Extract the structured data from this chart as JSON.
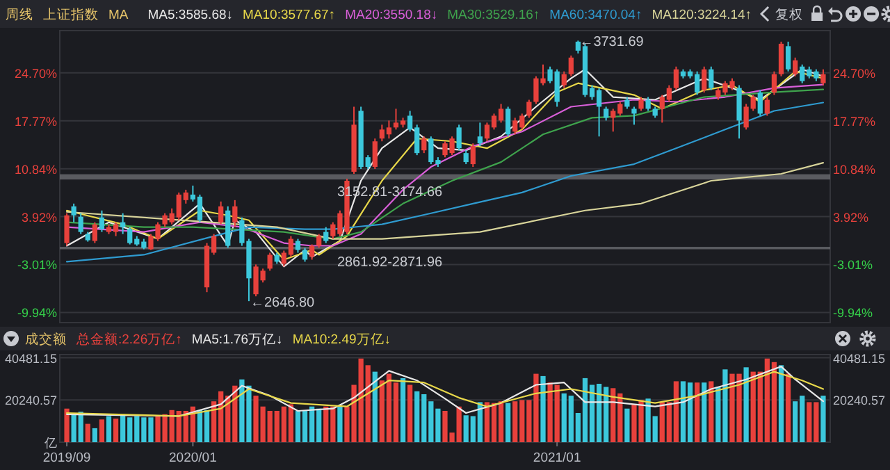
{
  "chart_data": [
    {
      "type": "candlestick",
      "subtitle": "周线",
      "title": "上证指数",
      "legend_title": "MA",
      "legend": "top left",
      "grid": "y",
      "tick_labels": "y",
      "x": [
        "2019-09-02",
        "2019-09-09",
        "2019-09-16",
        "2019-09-23",
        "2019-09-30",
        "2019-10-07",
        "2019-10-14",
        "2019-10-21",
        "2019-10-28",
        "2019-11-04",
        "2019-11-11",
        "2019-11-18",
        "2019-11-25",
        "2019-12-02",
        "2019-12-09",
        "2019-12-16",
        "2019-12-23",
        "2019-12-30",
        "2020-01-06",
        "2020-01-13",
        "2020-01-20",
        "2020-01-27",
        "2020-02-03",
        "2020-02-10",
        "2020-02-17",
        "2020-02-24",
        "2020-03-02",
        "2020-03-09",
        "2020-03-16",
        "2020-03-23",
        "2020-03-30",
        "2020-04-06",
        "2020-04-13",
        "2020-04-20",
        "2020-04-27",
        "2020-05-04",
        "2020-05-11",
        "2020-05-18",
        "2020-05-25",
        "2020-06-01",
        "2020-06-08",
        "2020-06-15",
        "2020-06-22",
        "2020-06-29",
        "2020-07-06",
        "2020-07-13",
        "2020-07-20",
        "2020-07-27",
        "2020-08-03",
        "2020-08-10",
        "2020-08-17",
        "2020-08-24",
        "2020-08-31",
        "2020-09-07",
        "2020-09-14",
        "2020-09-21",
        "2020-09-28",
        "2020-10-05",
        "2020-10-12",
        "2020-10-19",
        "2020-10-26",
        "2020-11-02",
        "2020-11-09",
        "2020-11-16",
        "2020-11-23",
        "2020-11-30",
        "2020-12-07",
        "2020-12-14",
        "2020-12-21",
        "2020-12-28",
        "2021-01-04",
        "2021-01-11",
        "2021-01-18",
        "2021-01-25",
        "2021-02-01",
        "2021-02-08",
        "2021-02-15",
        "2021-02-22",
        "2021-03-01",
        "2021-03-08",
        "2021-03-15",
        "2021-03-22",
        "2021-03-29",
        "2021-04-05",
        "2021-04-12",
        "2021-04-19",
        "2021-04-26",
        "2021-05-03",
        "2021-05-10",
        "2021-05-17",
        "2021-05-24",
        "2021-05-31",
        "2021-06-07",
        "2021-06-14",
        "2021-06-21",
        "2021-06-28",
        "2021-07-05",
        "2021-07-12",
        "2021-07-19",
        "2021-07-26",
        "2021-08-02",
        "2021-08-09",
        "2021-08-16",
        "2021-08-23",
        "2021-08-30",
        "2021-09-06",
        "2021-09-13",
        "2021-09-20",
        "2021-09-27"
      ],
      "ohlc": [
        [
          0.1,
          4.4,
          -0.3,
          4.1
        ],
        [
          5.4,
          5.8,
          3.1,
          4.1
        ],
        [
          3.9,
          4.4,
          1.4,
          1.7
        ],
        [
          1.4,
          1.7,
          0.3,
          0.5
        ],
        [
          0.4,
          3.1,
          0.1,
          2.8
        ],
        [
          3.8,
          4.8,
          1.7,
          2.1
        ],
        [
          1.7,
          2.8,
          1.4,
          2.4
        ],
        [
          1.7,
          3.1,
          1.1,
          2.8
        ],
        [
          3.1,
          4.4,
          1.4,
          2.4
        ],
        [
          2.1,
          2.4,
          -0.1,
          0.1
        ],
        [
          0.7,
          1.1,
          -0.3,
          -0.1
        ],
        [
          0.3,
          0.7,
          -0.8,
          -0.6
        ],
        [
          -0.8,
          1.4,
          -0.9,
          1.1
        ],
        [
          0.7,
          3.1,
          0.4,
          2.8
        ],
        [
          2.8,
          4.4,
          2.4,
          4.1
        ],
        [
          3.1,
          5.1,
          2.8,
          4.4
        ],
        [
          3.8,
          7.4,
          3.4,
          7.1
        ],
        [
          6.3,
          7.8,
          5.8,
          7.4
        ],
        [
          7.1,
          8.4,
          6.1,
          6.4
        ],
        [
          6.8,
          7.1,
          3.1,
          3.4
        ],
        [
          -6.3,
          0.1,
          -7.0,
          -0.3
        ],
        [
          -1.3,
          1.4,
          -1.6,
          1.1
        ],
        [
          3.1,
          6.1,
          2.8,
          5.4
        ],
        [
          4.8,
          5.4,
          -0.6,
          -0.3
        ],
        [
          3.1,
          6.3,
          2.4,
          5.4
        ],
        [
          3.4,
          3.8,
          -0.3,
          0.1
        ],
        [
          0.4,
          0.7,
          -8.3,
          -5.0
        ],
        [
          -7.3,
          -3.0,
          -7.6,
          -3.3
        ],
        [
          -5.3,
          -3.6,
          -5.6,
          -3.9
        ],
        [
          -3.6,
          -1.3,
          -3.9,
          -1.6
        ],
        [
          -1.6,
          -1.3,
          -2.9,
          -2.6
        ],
        [
          -2.9,
          -1.0,
          -3.3,
          -1.3
        ],
        [
          -1.6,
          1.1,
          -1.9,
          0.7
        ],
        [
          0.4,
          0.7,
          -1.3,
          -0.9
        ],
        [
          -0.9,
          -0.6,
          -2.6,
          -2.3
        ],
        [
          -1.9,
          -0.1,
          -2.3,
          -0.3
        ],
        [
          -0.3,
          1.4,
          -0.6,
          1.1
        ],
        [
          1.7,
          2.4,
          0.1,
          0.4
        ],
        [
          1.1,
          3.1,
          0.7,
          2.8
        ],
        [
          1.4,
          4.8,
          1.1,
          4.4
        ],
        [
          1.7,
          9.4,
          1.4,
          9.1
        ],
        [
          10.4,
          19.8,
          10.1,
          17.2
        ],
        [
          19.2,
          19.8,
          10.8,
          11.1
        ],
        [
          12.5,
          12.8,
          10.8,
          11.1
        ],
        [
          11.1,
          15.2,
          10.8,
          14.8
        ],
        [
          15.2,
          17.2,
          14.8,
          16.5
        ],
        [
          15.8,
          17.8,
          15.2,
          16.8
        ],
        [
          16.8,
          19.5,
          16.5,
          17.5
        ],
        [
          17.2,
          18.2,
          16.8,
          17.8
        ],
        [
          18.5,
          19.2,
          16.2,
          16.5
        ],
        [
          16.8,
          17.2,
          12.8,
          13.1
        ],
        [
          13.5,
          15.5,
          13.1,
          15.2
        ],
        [
          15.2,
          15.5,
          11.5,
          11.8
        ],
        [
          12.1,
          12.5,
          11.1,
          11.5
        ],
        [
          12.8,
          14.8,
          12.5,
          14.5
        ],
        [
          13.1,
          15.5,
          12.8,
          15.2
        ],
        [
          16.8,
          17.2,
          13.5,
          13.8
        ],
        [
          13.1,
          13.5,
          11.5,
          11.8
        ],
        [
          11.5,
          14.5,
          11.1,
          14.1
        ],
        [
          15.5,
          17.5,
          14.1,
          14.5
        ],
        [
          15.2,
          17.5,
          14.8,
          17.2
        ],
        [
          16.8,
          18.8,
          16.5,
          18.5
        ],
        [
          17.8,
          20.2,
          17.5,
          19.5
        ],
        [
          19.5,
          19.8,
          15.5,
          15.8
        ],
        [
          16.2,
          18.2,
          15.8,
          17.8
        ],
        [
          16.8,
          18.8,
          16.5,
          18.5
        ],
        [
          18.5,
          20.8,
          18.2,
          20.5
        ],
        [
          20.5,
          24.2,
          20.2,
          23.9
        ],
        [
          23.2,
          25.9,
          22.9,
          23.9
        ],
        [
          25.2,
          25.6,
          23.2,
          23.5
        ],
        [
          24.9,
          25.2,
          19.8,
          20.5
        ],
        [
          22.9,
          24.9,
          22.5,
          24.5
        ],
        [
          24.5,
          27.2,
          24.2,
          26.9
        ],
        [
          29.2,
          29.35,
          27.5,
          27.9
        ],
        [
          28.55,
          28.9,
          21.2,
          21.5
        ],
        [
          22.5,
          22.9,
          20.8,
          21.2
        ],
        [
          22.2,
          22.5,
          15.5,
          19.8
        ],
        [
          19.5,
          19.8,
          17.8,
          18.2
        ],
        [
          18.2,
          19.5,
          16.2,
          19.2
        ],
        [
          18.8,
          20.5,
          18.5,
          20.2
        ],
        [
          20.8,
          21.2,
          19.5,
          19.8
        ],
        [
          19.5,
          19.8,
          17.2,
          18.8
        ],
        [
          19.5,
          21.2,
          19.2,
          20.8
        ],
        [
          20.8,
          21.2,
          19.2,
          19.5
        ],
        [
          19.5,
          19.8,
          18.2,
          18.5
        ],
        [
          19.5,
          21.5,
          17.5,
          21.2
        ],
        [
          20.8,
          22.9,
          20.5,
          22.5
        ],
        [
          22.5,
          25.6,
          22.2,
          25.2
        ],
        [
          24.9,
          25.2,
          23.9,
          24.2
        ],
        [
          24.9,
          25.2,
          23.9,
          24.2
        ],
        [
          24.5,
          24.9,
          21.5,
          21.85
        ],
        [
          22.2,
          25.6,
          21.85,
          25.2
        ],
        [
          25.2,
          25.6,
          22.2,
          22.5
        ],
        [
          21.2,
          22.5,
          20.8,
          22.2
        ],
        [
          21.85,
          23.5,
          21.5,
          23.2
        ],
        [
          22.5,
          23.9,
          22.2,
          23.5
        ],
        [
          22.5,
          22.9,
          15.2,
          17.8
        ],
        [
          16.8,
          20.2,
          16.5,
          19.8
        ],
        [
          19.5,
          21.5,
          19.2,
          21.2
        ],
        [
          21.85,
          22.2,
          18.5,
          18.8
        ],
        [
          18.8,
          21.2,
          18.5,
          20.8
        ],
        [
          21.85,
          24.9,
          21.5,
          24.5
        ],
        [
          24.5,
          29.2,
          24.2,
          28.9
        ],
        [
          28.55,
          29.2,
          24.9,
          25.2
        ],
        [
          24.5,
          26.9,
          24.2,
          26.5
        ],
        [
          25.6,
          25.9,
          23.2,
          23.5
        ],
        [
          25.2,
          25.6,
          23.9,
          24.2
        ],
        [
          24.9,
          25.2,
          23.5,
          23.9
        ],
        [
          23.2,
          25.2,
          22.9,
          24.5
        ]
      ],
      "colors": [
        "#e8413c",
        "#3cc8dc",
        "#3cc8dc",
        "#3cc8dc",
        "#e8413c",
        "#3cc8dc",
        "#e8413c",
        "#e8413c",
        "#3cc8dc",
        "#3cc8dc",
        "#3cc8dc",
        "#3cc8dc",
        "#e8413c",
        "#e8413c",
        "#e8413c",
        "#e8413c",
        "#e8413c",
        "#e8413c",
        "#3cc8dc",
        "#3cc8dc",
        "#e8413c",
        "#e8413c",
        "#e8413c",
        "#3cc8dc",
        "#e8413c",
        "#3cc8dc",
        "#3cc8dc",
        "#e8413c",
        "#e8413c",
        "#e8413c",
        "#3cc8dc",
        "#e8413c",
        "#e8413c",
        "#3cc8dc",
        "#3cc8dc",
        "#e8413c",
        "#e8413c",
        "#3cc8dc",
        "#e8413c",
        "#e8413c",
        "#e8413c",
        "#e8413c",
        "#3cc8dc",
        "#3cc8dc",
        "#e8413c",
        "#e8413c",
        "#e8413c",
        "#e8413c",
        "#e8413c",
        "#3cc8dc",
        "#3cc8dc",
        "#e8413c",
        "#3cc8dc",
        "#3cc8dc",
        "#e8413c",
        "#e8413c",
        "#3cc8dc",
        "#3cc8dc",
        "#e8413c",
        "#3cc8dc",
        "#e8413c",
        "#e8413c",
        "#e8413c",
        "#3cc8dc",
        "#e8413c",
        "#e8413c",
        "#e8413c",
        "#e8413c",
        "#e8413c",
        "#3cc8dc",
        "#3cc8dc",
        "#e8413c",
        "#e8413c",
        "#3cc8dc",
        "#3cc8dc",
        "#3cc8dc",
        "#3cc8dc",
        "#3cc8dc",
        "#e8413c",
        "#e8413c",
        "#3cc8dc",
        "#3cc8dc",
        "#e8413c",
        "#3cc8dc",
        "#3cc8dc",
        "#e8413c",
        "#e8413c",
        "#e8413c",
        "#3cc8dc",
        "#3cc8dc",
        "#3cc8dc",
        "#e8413c",
        "#3cc8dc",
        "#e8413c",
        "#e8413c",
        "#e8413c",
        "#3cc8dc",
        "#e8413c",
        "#e8413c",
        "#3cc8dc",
        "#e8413c",
        "#e8413c",
        "#e8413c",
        "#3cc8dc",
        "#e8413c",
        "#3cc8dc",
        "#3cc8dc",
        "#3cc8dc",
        "#e8413c"
      ],
      "series": [
        {
          "type": "line",
          "name": "MA5:3585.68↓",
          "color": "#e8e8e8",
          "x": [
            "2019-09-02",
            "2019-10-14",
            "2019-12-02",
            "2020-01-13",
            "2020-02-10",
            "2020-02-17",
            "2020-03-09",
            "2020-04-06",
            "2020-04-27",
            "2020-05-04",
            "2020-06-01",
            "2020-06-22",
            "2020-07-13",
            "2020-08-10",
            "2020-09-07",
            "2020-10-05",
            "2020-11-09",
            "2020-12-14",
            "2021-01-18",
            "2021-02-01",
            "2021-03-01",
            "2021-04-12",
            "2021-05-31",
            "2021-06-28",
            "2021-07-26",
            "2021-09-06",
            "2021-09-27"
          ],
          "values": [
            -0.3,
            3.1,
            0.7,
            5.8,
            -0.3,
            3.4,
            1.7,
            -3.3,
            -0.9,
            -1.9,
            0.4,
            9.1,
            13.8,
            16.8,
            13.8,
            13.5,
            15.5,
            19.8,
            23.9,
            25.2,
            21.2,
            20.8,
            23.9,
            22.5,
            20.8,
            25.2,
            24.2
          ]
        },
        {
          "type": "line",
          "name": "MA10:3577.67↑",
          "color": "#e8d84a",
          "x": [
            "2019-09-02",
            "2019-10-28",
            "2019-12-02",
            "2020-01-13",
            "2020-02-10",
            "2020-03-02",
            "2020-04-06",
            "2020-05-04",
            "2020-05-11",
            "2020-06-08",
            "2020-07-13",
            "2020-08-17",
            "2020-09-21",
            "2020-10-26",
            "2020-11-30",
            "2021-01-04",
            "2021-01-25",
            "2021-03-22",
            "2021-04-19",
            "2021-05-31",
            "2021-06-28",
            "2021-07-26",
            "2021-08-30",
            "2021-09-27"
          ],
          "values": [
            4.8,
            2.8,
            0.7,
            4.8,
            4.1,
            3.4,
            -2.3,
            -0.9,
            -1.6,
            1.1,
            9.1,
            15.2,
            14.8,
            13.8,
            16.5,
            21.9,
            23.2,
            21.5,
            19.5,
            22.2,
            22.9,
            20.5,
            24.9,
            23.9
          ]
        },
        {
          "type": "line",
          "name": "MA20:3550.18↓",
          "color": "#d95fd9",
          "x": [
            "2019-09-02",
            "2019-11-18",
            "2020-01-13",
            "2020-02-24",
            "2020-04-06",
            "2020-05-04",
            "2020-05-25",
            "2020-06-22",
            "2020-08-03",
            "2020-08-31",
            "2020-10-12",
            "2020-11-30",
            "2021-01-18",
            "2021-03-22",
            "2021-05-03",
            "2021-06-21",
            "2021-08-09",
            "2021-09-27"
          ],
          "values": [
            2.4,
            1.7,
            3.1,
            2.4,
            0.1,
            -0.3,
            -0.3,
            1.4,
            7.8,
            11.1,
            14.1,
            16.2,
            19.8,
            20.8,
            20.5,
            21.2,
            22.5,
            23.0
          ]
        },
        {
          "type": "line",
          "name": "MA30:3529.16↑",
          "color": "#3fa34d",
          "x": [
            "2019-09-02",
            "2019-11-18",
            "2020-01-06",
            "2020-04-06",
            "2020-05-04",
            "2020-05-25",
            "2020-06-22",
            "2020-08-03",
            "2020-09-21",
            "2020-11-09",
            "2020-12-21",
            "2021-02-08",
            "2021-03-22",
            "2021-05-31",
            "2021-08-09",
            "2021-09-27"
          ],
          "values": [
            3.1,
            2.4,
            2.4,
            1.7,
            1.1,
            0.7,
            1.7,
            5.8,
            9.1,
            11.8,
            15.8,
            18.2,
            18.5,
            21.2,
            21.9,
            22.3
          ]
        },
        {
          "type": "line",
          "name": "MA60:3470.04↑",
          "color": "#2f9bd0",
          "x": [
            "2019-09-02",
            "2019-11-18",
            "2020-01-27",
            "2020-03-02",
            "2020-04-27",
            "2020-05-25",
            "2020-07-13",
            "2020-08-31",
            "2020-10-12",
            "2020-11-30",
            "2021-01-18",
            "2021-03-22",
            "2021-05-03",
            "2021-06-21",
            "2021-08-09",
            "2021-09-27"
          ],
          "values": [
            -2.6,
            -1.6,
            1.1,
            2.4,
            2.1,
            2.1,
            2.8,
            4.4,
            5.8,
            7.4,
            9.8,
            11.5,
            13.8,
            16.5,
            19.2,
            20.4
          ]
        },
        {
          "type": "line",
          "name": "MA120:3224.14↑",
          "color": "#d8d49a",
          "x": [
            "2019-09-02",
            "2020-03-30",
            "2020-05-25",
            "2020-07-13",
            "2020-10-19",
            "2021-02-01",
            "2021-03-29",
            "2021-06-07",
            "2021-08-16",
            "2021-09-27"
          ],
          "values": [
            4.6,
            2.4,
            0.7,
            0.7,
            1.7,
            4.8,
            5.8,
            9.1,
            10.1,
            11.7
          ]
        }
      ],
      "xlim": [
        "2019-08-26",
        "2021-10-04"
      ],
      "ylim": [
        -11.4,
        30.8
      ],
      "yticks": [
        {
          "value": -9.94,
          "label": "-9.94%"
        },
        {
          "value": -3.01,
          "label": "-3.01%"
        },
        {
          "value": 3.92,
          "label": "3.92%"
        },
        {
          "value": 10.84,
          "label": "10.84%"
        },
        {
          "value": 17.77,
          "label": "17.77%"
        },
        {
          "value": 24.7,
          "label": "24.70%"
        }
      ],
      "y2lim": [
        -11.4,
        30.8
      ],
      "y2ticks": [
        {
          "value": -9.94,
          "label": "-9.94%"
        },
        {
          "value": -3.01,
          "label": "-3.01%"
        },
        {
          "value": 3.92,
          "label": "3.92%"
        },
        {
          "value": 10.84,
          "label": "10.84%"
        },
        {
          "value": 17.77,
          "label": "17.77%"
        },
        {
          "value": 24.7,
          "label": "24.70%"
        }
      ],
      "bands": [
        {
          "axis": "y",
          "from": 9.28,
          "to": 10.04,
          "label": "3152.81-3174.66",
          "color": "#6a6b70"
        },
        {
          "axis": "y",
          "from": -0.8,
          "to": -0.45,
          "label": "2861.92-2871.96",
          "color": "#6a6b70"
        }
      ],
      "annotations": [
        {
          "text": "←3731.69",
          "x": "2021-01-25",
          "y": 29.35
        },
        {
          "text": "←2646.80",
          "x": "2020-03-02",
          "y": -8.3
        },
        "复权"
      ]
    },
    {
      "type": "bar",
      "title": "成交额",
      "legend": "top left",
      "grid": "y",
      "x": [
        "2019-09-02",
        "2019-09-09",
        "2019-09-16",
        "2019-09-23",
        "2019-09-30",
        "2019-10-07",
        "2019-10-14",
        "2019-10-21",
        "2019-10-28",
        "2019-11-04",
        "2019-11-11",
        "2019-11-18",
        "2019-11-25",
        "2019-12-02",
        "2019-12-09",
        "2019-12-16",
        "2019-12-23",
        "2019-12-30",
        "2020-01-06",
        "2020-01-13",
        "2020-01-20",
        "2020-01-27",
        "2020-02-03",
        "2020-02-10",
        "2020-02-17",
        "2020-02-24",
        "2020-03-02",
        "2020-03-09",
        "2020-03-16",
        "2020-03-23",
        "2020-03-30",
        "2020-04-06",
        "2020-04-13",
        "2020-04-20",
        "2020-04-27",
        "2020-05-04",
        "2020-05-11",
        "2020-05-18",
        "2020-05-25",
        "2020-06-01",
        "2020-06-08",
        "2020-06-15",
        "2020-06-22",
        "2020-06-29",
        "2020-07-06",
        "2020-07-13",
        "2020-07-20",
        "2020-07-27",
        "2020-08-03",
        "2020-08-10",
        "2020-08-17",
        "2020-08-24",
        "2020-08-31",
        "2020-09-07",
        "2020-09-14",
        "2020-09-21",
        "2020-09-28",
        "2020-10-05",
        "2020-10-12",
        "2020-10-19",
        "2020-10-26",
        "2020-11-02",
        "2020-11-09",
        "2020-11-16",
        "2020-11-23",
        "2020-11-30",
        "2020-12-07",
        "2020-12-14",
        "2020-12-21",
        "2020-12-28",
        "2021-01-04",
        "2021-01-11",
        "2021-01-18",
        "2021-01-25",
        "2021-02-01",
        "2021-02-08",
        "2021-02-15",
        "2021-02-22",
        "2021-03-01",
        "2021-03-08",
        "2021-03-15",
        "2021-03-22",
        "2021-03-29",
        "2021-04-05",
        "2021-04-12",
        "2021-04-19",
        "2021-04-26",
        "2021-05-03",
        "2021-05-10",
        "2021-05-17",
        "2021-05-24",
        "2021-05-31",
        "2021-06-07",
        "2021-06-14",
        "2021-06-21",
        "2021-06-28",
        "2021-07-05",
        "2021-07-12",
        "2021-07-19",
        "2021-07-26",
        "2021-08-02",
        "2021-08-09",
        "2021-08-16",
        "2021-08-23",
        "2021-08-30",
        "2021-09-06",
        "2021-09-13",
        "2021-09-20",
        "2021-09-27"
      ],
      "series": [
        {
          "name": "总金额:2.26万亿↑",
          "color": "#e8413c",
          "colors": [
            "#e8413c",
            "#3cc8dc",
            "#3cc8dc",
            "#e8413c",
            "#3cc8dc",
            "#e8413c",
            "#3cc8dc",
            "#e8413c",
            "#3cc8dc",
            "#3cc8dc",
            "#3cc8dc",
            "#3cc8dc",
            "#3cc8dc",
            "#e8413c",
            "#e8413c",
            "#e8413c",
            "#e8413c",
            "#e8413c",
            "#e8413c",
            "#3cc8dc",
            "#3cc8dc",
            "#e8413c",
            "#e8413c",
            "#e8413c",
            "#e8413c",
            "#3cc8dc",
            "#3cc8dc",
            "#e8413c",
            "#e8413c",
            "#e8413c",
            "#e8413c",
            "#e8413c",
            "#e8413c",
            "#3cc8dc",
            "#3cc8dc",
            "#3cc8dc",
            "#3cc8dc",
            "#e8413c",
            "#e8413c",
            "#3cc8dc",
            "#e8413c",
            "#e8413c",
            "#e8413c",
            "#e8413c",
            "#3cc8dc",
            "#e8413c",
            "#e8413c",
            "#e8413c",
            "#3cc8dc",
            "#e8413c",
            "#3cc8dc",
            "#3cc8dc",
            "#3cc8dc",
            "#3cc8dc",
            "#e8413c",
            "#e8413c",
            "#e8413c",
            "#3cc8dc",
            "#3cc8dc",
            "#3cc8dc",
            "#e8413c",
            "#e8413c",
            "#e8413c",
            "#3cc8dc",
            "#e8413c",
            "#e8413c",
            "#e8413c",
            "#e8413c",
            "#3cc8dc",
            "#e8413c",
            "#e8413c",
            "#3cc8dc",
            "#3cc8dc",
            "#3cc8dc",
            "#3cc8dc",
            "#3cc8dc",
            "#3cc8dc",
            "#3cc8dc",
            "#e8413c",
            "#e8413c",
            "#3cc8dc",
            "#e8413c",
            "#e8413c",
            "#3cc8dc",
            "#3cc8dc",
            "#e8413c",
            "#e8413c",
            "#e8413c",
            "#3cc8dc",
            "#3cc8dc",
            "#e8413c",
            "#3cc8dc",
            "#e8413c",
            "#3cc8dc",
            "#3cc8dc",
            "#e8413c",
            "#e8413c",
            "#3cc8dc",
            "#e8413c",
            "#e8413c",
            "#e8413c",
            "#e8413c",
            "#3cc8dc",
            "#e8413c",
            "#3cc8dc",
            "#3cc8dc",
            "#e8413c",
            "#e8413c",
            "#3cc8dc"
          ],
          "values": [
            16100,
            14000,
            14600,
            8800,
            6700,
            10900,
            12500,
            11300,
            13400,
            11900,
            12500,
            11900,
            11900,
            12500,
            13400,
            15400,
            15000,
            15000,
            17100,
            15400,
            15400,
            19600,
            24400,
            22300,
            27100,
            30100,
            27100,
            22300,
            17100,
            15000,
            15000,
            17100,
            18200,
            15000,
            15000,
            17100,
            16100,
            17100,
            17100,
            17100,
            17100,
            27500,
            40100,
            36900,
            33800,
            29600,
            32800,
            28600,
            30700,
            27500,
            24400,
            23000,
            19600,
            16100,
            15000,
            4600,
            17100,
            12900,
            12500,
            19200,
            19200,
            18800,
            19600,
            18800,
            19600,
            20200,
            20200,
            32800,
            31700,
            28600,
            27500,
            23400,
            22300,
            14000,
            30700,
            27500,
            28000,
            26500,
            25900,
            23400,
            16100,
            18200,
            20200,
            20900,
            12500,
            19200,
            19200,
            29200,
            29200,
            28600,
            28600,
            28600,
            29200,
            26500,
            34900,
            32800,
            32800,
            35900,
            33800,
            33800,
            40100,
            38400,
            36900,
            32800,
            19600,
            22300,
            19200,
            19200,
            22300
          ]
        },
        {
          "type": "line",
          "name": "MA5:1.76万亿↓",
          "color": "#e8e8e8",
          "x": [
            "2019-09-02",
            "2019-12-23",
            "2020-02-03",
            "2020-02-24",
            "2020-03-23",
            "2020-04-20",
            "2020-05-25",
            "2020-06-15",
            "2020-07-20",
            "2020-08-17",
            "2020-09-14",
            "2020-10-05",
            "2020-11-09",
            "2020-12-14",
            "2021-01-11",
            "2021-02-01",
            "2021-03-01",
            "2021-04-12",
            "2021-05-10",
            "2021-06-07",
            "2021-07-12",
            "2021-08-16",
            "2021-08-30",
            "2021-09-27"
          ],
          "values": [
            13400,
            12500,
            18200,
            27100,
            22300,
            15000,
            16100,
            21300,
            34200,
            29600,
            20900,
            14000,
            18800,
            27500,
            28600,
            19200,
            19200,
            17100,
            19200,
            25500,
            30100,
            36300,
            30100,
            19600
          ]
        },
        {
          "type": "line",
          "name": "MA10:2.49万亿↓",
          "color": "#e8d84a",
          "x": [
            "2019-09-02",
            "2019-12-23",
            "2020-02-03",
            "2020-03-02",
            "2020-04-13",
            "2020-06-08",
            "2020-07-20",
            "2020-08-24",
            "2020-09-28",
            "2020-10-26",
            "2020-12-14",
            "2021-01-18",
            "2021-03-01",
            "2021-04-12",
            "2021-05-24",
            "2021-07-05",
            "2021-08-09",
            "2021-09-06",
            "2021-09-27"
          ],
          "values": [
            14000,
            12500,
            16100,
            25500,
            18800,
            17100,
            29600,
            28600,
            21300,
            17100,
            23400,
            25500,
            21700,
            18800,
            22300,
            27500,
            33800,
            29600,
            25500
          ]
        }
      ],
      "xlim": [
        "2019-08-26",
        "2021-10-04"
      ],
      "ylim": [
        0,
        42000
      ],
      "xticks": [
        {
          "value": "2019-09-02",
          "label": "2019/09"
        },
        {
          "value": "2020-01-06",
          "label": "2020/01"
        },
        {
          "value": "2021-01-04",
          "label": "2021/01"
        }
      ],
      "yticks": [
        {
          "value": 0,
          "label": "亿"
        },
        20240.57,
        40481.15
      ],
      "y2lim": [
        0,
        42000
      ],
      "y2ticks": [
        20240.57,
        40481.15
      ]
    }
  ]
}
